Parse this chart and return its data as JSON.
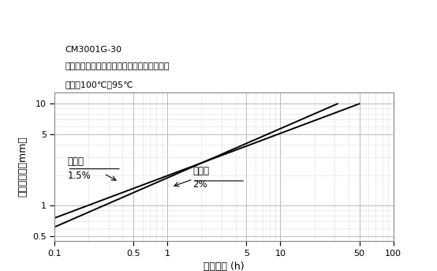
{
  "title_line1": "CM3001G-30",
  "title_line2": "試験片：肉厘に対して形状が非常に大きな物",
  "title_line3": "水温：100℃～95℃",
  "xlabel": "浸漬時間 (h)",
  "ylabel": "成形品肉厘（mm）",
  "xlim": [
    0.1,
    100
  ],
  "ylim": [
    0.45,
    13
  ],
  "line1_label_line1": "吸水率",
  "line1_label_line2": "1.5%",
  "line2_label_line1": "吸水率",
  "line2_label_line2": "2%",
  "line_color": "#000000",
  "grid_major_color": "#bbbbbb",
  "grid_minor_color": "#dddddd",
  "background_color": "#ffffff",
  "line1_x": [
    0.1,
    50
  ],
  "line1_y": [
    0.76,
    10.0
  ],
  "line2_x": [
    0.1,
    32
  ],
  "line2_y": [
    0.62,
    10.0
  ],
  "ann1_tip_x": 0.37,
  "ann1_tip_y": 1.72,
  "ann1_txt_x": 0.13,
  "ann1_txt_y": 2.35,
  "ann2_tip_x": 1.08,
  "ann2_tip_y": 1.53,
  "ann2_txt_x": 1.4,
  "ann2_txt_y": 1.35
}
